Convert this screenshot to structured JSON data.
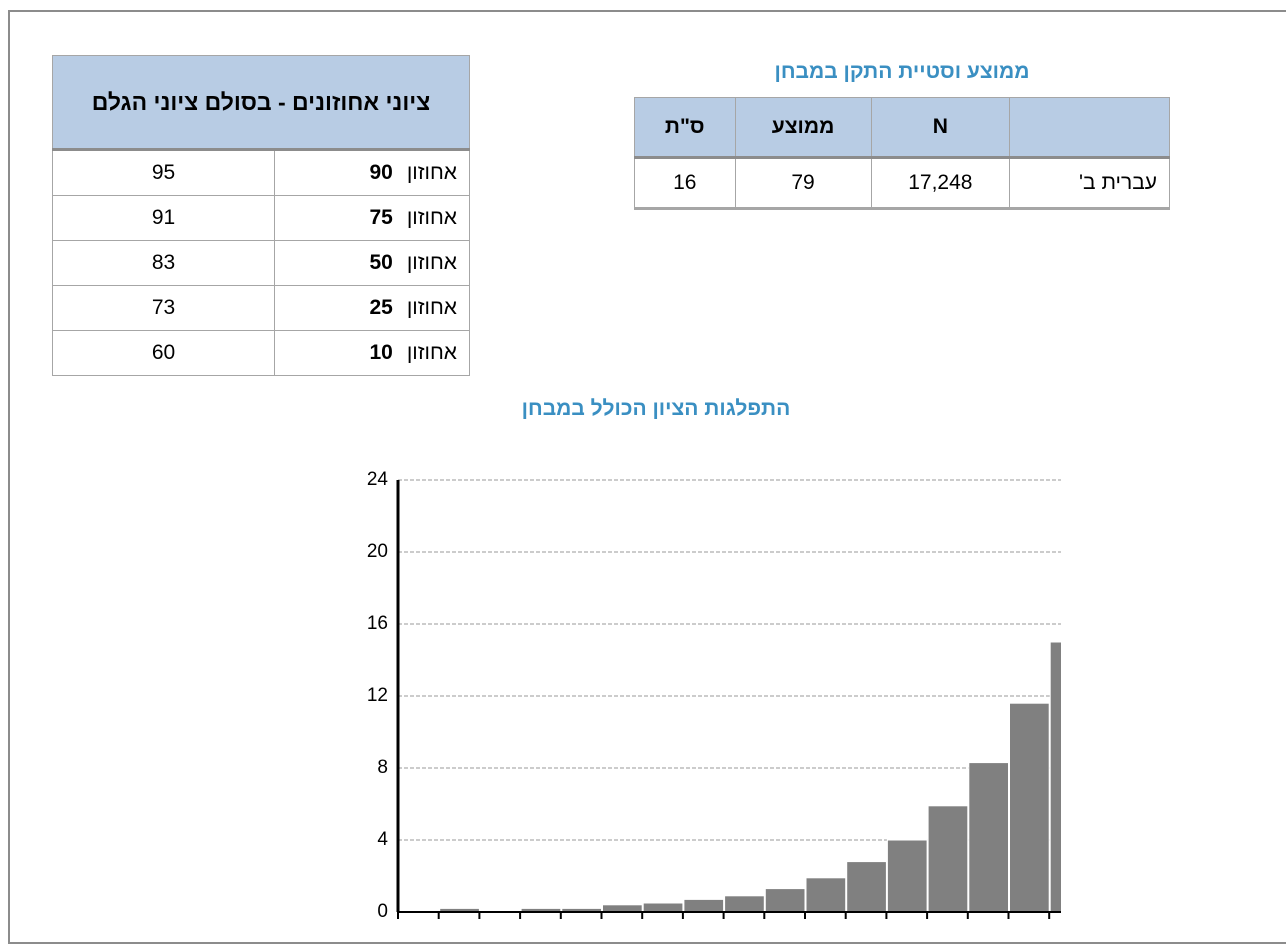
{
  "percentile_table": {
    "title": "ציוני אחוזונים - בסולם ציוני הגלם",
    "rows": [
      {
        "label": "אחוזון",
        "percentile": 90,
        "score": 95
      },
      {
        "label": "אחוזון",
        "percentile": 75,
        "score": 91
      },
      {
        "label": "אחוזון",
        "percentile": 50,
        "score": 83
      },
      {
        "label": "אחוזון",
        "percentile": 25,
        "score": 73
      },
      {
        "label": "אחוזון",
        "percentile": 10,
        "score": 60
      }
    ]
  },
  "stats_table": {
    "title": "ממוצע וסטיית התקן במבחן",
    "header": [
      "",
      "N",
      "ממוצע",
      "ס\"ת"
    ],
    "rows": [
      [
        "עברית ב'",
        "17,248",
        "79",
        "16"
      ]
    ]
  },
  "chart_data": {
    "type": "bar",
    "title": "התפלגות הציון הכולל במבחן",
    "categories": [
      null,
      null,
      null,
      null,
      null,
      null,
      null,
      null,
      null,
      null,
      null,
      null,
      null,
      null,
      null,
      null,
      null
    ],
    "values": [
      0,
      0.2,
      0,
      0.2,
      0.2,
      0.4,
      0.5,
      0.7,
      0.9,
      1.3,
      1.9,
      2.8,
      4.0,
      5.9,
      8.3,
      11.6,
      15
    ],
    "color": "#808080",
    "ylim": [
      0,
      24
    ],
    "yticks": [
      0,
      4,
      8,
      12,
      16,
      20,
      24
    ],
    "grid": true
  }
}
